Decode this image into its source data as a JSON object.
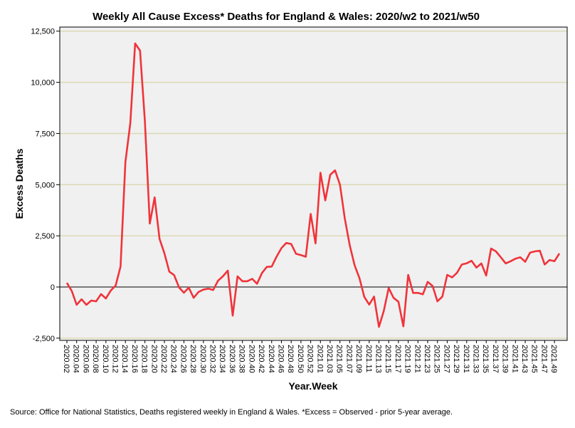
{
  "chart_data": {
    "type": "line",
    "title": "Weekly All Cause Excess* Deaths for England & Wales: 2020/w2 to 2021/w50",
    "xlabel": "Year.Week",
    "ylabel": "Excess Deaths",
    "ylim": [
      -2610,
      12700
    ],
    "yticks": [
      -2500,
      0,
      2500,
      5000,
      7500,
      10000,
      12500
    ],
    "ytick_labels": [
      "-2,500",
      "0",
      "2,500",
      "5,000",
      "7,500",
      "10,000",
      "12,500"
    ],
    "grid": true,
    "footnote": "Source: Office for National Statistics, Deaths registered weekly in England & Wales. *Excess = Observed - prior 5-year average.",
    "colors": {
      "line": "#f0333a",
      "plot_bg": "#f0f0f0",
      "grid": "#dcdab4",
      "zero": "#000000"
    },
    "x": [
      "2020.02",
      "2020.03",
      "2020.04",
      "2020.05",
      "2020.06",
      "2020.07",
      "2020.08",
      "2020.09",
      "2020.10",
      "2020.11",
      "2020.12",
      "2020.13",
      "2020.14",
      "2020.15",
      "2020.16",
      "2020.17",
      "2020.18",
      "2020.19",
      "2020.20",
      "2020.21",
      "2020.22",
      "2020.23",
      "2020.24",
      "2020.25",
      "2020.26",
      "2020.27",
      "2020.28",
      "2020.29",
      "2020.30",
      "2020.31",
      "2020.32",
      "2020.33",
      "2020.34",
      "2020.35",
      "2020.36",
      "2020.37",
      "2020.38",
      "2020.39",
      "2020.40",
      "2020.41",
      "2020.42",
      "2020.43",
      "2020.44",
      "2020.45",
      "2020.46",
      "2020.47",
      "2020.48",
      "2020.49",
      "2020.50",
      "2020.51",
      "2020.52",
      "2020.53",
      "2021.01",
      "2021.02",
      "2021.03",
      "2021.04",
      "2021.05",
      "2021.06",
      "2021.07",
      "2021.08",
      "2021.09",
      "2021.10",
      "2021.11",
      "2021.12",
      "2021.13",
      "2021.14",
      "2021.15",
      "2021.16",
      "2021.17",
      "2021.18",
      "2021.19",
      "2021.20",
      "2021.21",
      "2021.22",
      "2021.23",
      "2021.24",
      "2021.25",
      "2021.26",
      "2021.27",
      "2021.28",
      "2021.29",
      "2021.30",
      "2021.31",
      "2021.32",
      "2021.33",
      "2021.34",
      "2021.35",
      "2021.36",
      "2021.37",
      "2021.38",
      "2021.39",
      "2021.40",
      "2021.41",
      "2021.42",
      "2021.43",
      "2021.44",
      "2021.45",
      "2021.46",
      "2021.47",
      "2021.48",
      "2021.49",
      "2021.50"
    ],
    "series": [
      {
        "name": "Excess Deaths",
        "values": [
          200,
          -200,
          -870,
          -600,
          -870,
          -660,
          -700,
          -350,
          -560,
          -170,
          70,
          1000,
          6100,
          8000,
          11900,
          11550,
          8100,
          3100,
          4380,
          2350,
          1650,
          750,
          580,
          -20,
          -280,
          -30,
          -530,
          -240,
          -130,
          -80,
          -150,
          310,
          520,
          800,
          -1400,
          520,
          280,
          280,
          400,
          160,
          680,
          980,
          1000,
          1480,
          1900,
          2150,
          2100,
          1620,
          1560,
          1480,
          3570,
          2130,
          5580,
          4230,
          5480,
          5700,
          5000,
          3350,
          2050,
          1070,
          430,
          -480,
          -860,
          -470,
          -1950,
          -1170,
          -50,
          -530,
          -720,
          -1920,
          590,
          -290,
          -290,
          -360,
          250,
          50,
          -700,
          -470,
          590,
          470,
          690,
          1100,
          1160,
          1280,
          950,
          1150,
          560,
          1880,
          1740,
          1450,
          1150,
          1260,
          1380,
          1450,
          1230,
          1680,
          1740,
          1770,
          1100,
          1320,
          1260,
          1640
        ]
      }
    ],
    "xtick_labels": [
      "2020.02",
      "2020.04",
      "2020.06",
      "2020.08",
      "2020.10",
      "2020.12",
      "2020.14",
      "2020.16",
      "2020.18",
      "2020.20",
      "2020.22",
      "2020.24",
      "2020.26",
      "2020.28",
      "2020.30",
      "2020.32",
      "2020.34",
      "2020.36",
      "2020.38",
      "2020.40",
      "2020.42",
      "2020.44",
      "2020.46",
      "2020.48",
      "2020.50",
      "2020.52",
      "2021.01",
      "2021.03",
      "2021.05",
      "2021.07",
      "2021.09",
      "2021.11",
      "2021.13",
      "2021.15",
      "2021.17",
      "2021.19",
      "2021.21",
      "2021.23",
      "2021.25",
      "2021.27",
      "2021.29",
      "2021.31",
      "2021.33",
      "2021.35",
      "2021.37",
      "2021.39",
      "2021.41",
      "2021.43",
      "2021.45",
      "2021.47",
      "2021.49"
    ]
  }
}
